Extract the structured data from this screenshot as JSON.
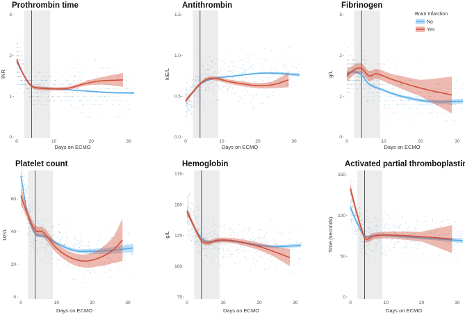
{
  "figure": {
    "legend_title": "Brain Infarction",
    "colors": {
      "No": "#5aaee8",
      "Yes": "#d2503a",
      "shade": "#ececec",
      "vline": "#555555"
    }
  },
  "chart_data": [
    {
      "type": "line",
      "title": "Prothrombin time",
      "xlabel": "Days on ECMO",
      "ylabel": "INR",
      "xlim": [
        0,
        32
      ],
      "ylim": [
        0,
        3.1
      ],
      "xticks": [
        "0",
        "10",
        "20",
        "30"
      ],
      "yticks": [
        "0",
        "1",
        "2",
        "3"
      ],
      "ytick_values": [
        0,
        1,
        2,
        3
      ],
      "shaded_x": [
        2,
        9
      ],
      "vline_x": 4,
      "legend": "none",
      "series": [
        {
          "name": "No",
          "x": [
            0,
            2,
            4,
            8,
            15,
            20,
            25,
            31.5
          ],
          "y": [
            1.85,
            1.5,
            1.25,
            1.2,
            1.15,
            1.12,
            1.09,
            1.08
          ],
          "ci": [
            0.04,
            0.02,
            0.015,
            0.015,
            0.015,
            0.015,
            0.02,
            0.025
          ]
        },
        {
          "name": "Yes",
          "x": [
            0,
            2,
            4,
            6,
            10,
            14,
            18,
            22,
            28.5
          ],
          "y": [
            1.9,
            1.5,
            1.25,
            1.2,
            1.18,
            1.2,
            1.3,
            1.37,
            1.4
          ],
          "ci": [
            0.05,
            0.04,
            0.04,
            0.05,
            0.04,
            0.04,
            0.05,
            0.08,
            0.17
          ]
        }
      ]
    },
    {
      "type": "line",
      "title": "Antithrombin",
      "xlabel": "Days on ECMO",
      "ylabel": "kIE/L",
      "xlim": [
        0,
        32
      ],
      "ylim": [
        0,
        1.55
      ],
      "xticks": [
        "0",
        "10",
        "20",
        "30"
      ],
      "yticks": [
        "0.0",
        "0.5",
        "1.0",
        "1.5"
      ],
      "ytick_values": [
        0,
        0.5,
        1,
        1.5
      ],
      "shaded_x": [
        2,
        9
      ],
      "vline_x": 4,
      "legend": "none",
      "series": [
        {
          "name": "No",
          "x": [
            0,
            2,
            4,
            8,
            12,
            20,
            26,
            31.5
          ],
          "y": [
            0.44,
            0.55,
            0.65,
            0.72,
            0.74,
            0.78,
            0.78,
            0.76
          ],
          "ci": [
            0.02,
            0.01,
            0.01,
            0.01,
            0.01,
            0.01,
            0.015,
            0.02
          ]
        },
        {
          "name": "Yes",
          "x": [
            0,
            2,
            4,
            6,
            8,
            12,
            16,
            20,
            24,
            28.5
          ],
          "y": [
            0.44,
            0.55,
            0.65,
            0.71,
            0.72,
            0.68,
            0.65,
            0.63,
            0.64,
            0.7
          ],
          "ci": [
            0.03,
            0.02,
            0.02,
            0.02,
            0.025,
            0.025,
            0.03,
            0.03,
            0.04,
            0.09
          ]
        }
      ]
    },
    {
      "type": "line",
      "title": "Fibrinogen",
      "xlabel": "Days on ECMO",
      "ylabel": "g/L",
      "xlim": [
        0,
        32
      ],
      "ylim": [
        0,
        3.1
      ],
      "xticks": [
        "0",
        "10",
        "20",
        "30"
      ],
      "yticks": [
        "0",
        "1",
        "2",
        "3"
      ],
      "ytick_values": [
        0,
        1,
        2,
        3
      ],
      "shaded_x": [
        2,
        9
      ],
      "vline_x": 4,
      "legend": "top-right",
      "series": [
        {
          "name": "No",
          "x": [
            0,
            2,
            4,
            6,
            9,
            14,
            20,
            25,
            31.5
          ],
          "y": [
            1.55,
            1.6,
            1.52,
            1.3,
            1.18,
            1.02,
            0.9,
            0.86,
            0.88
          ],
          "ci": [
            0.05,
            0.04,
            0.03,
            0.03,
            0.03,
            0.03,
            0.04,
            0.05,
            0.06
          ]
        },
        {
          "name": "Yes",
          "x": [
            0,
            2,
            4,
            6,
            8,
            12,
            20,
            28.5
          ],
          "y": [
            1.5,
            1.65,
            1.68,
            1.5,
            1.55,
            1.42,
            1.2,
            1.03
          ],
          "ci": [
            0.15,
            0.12,
            0.12,
            0.12,
            0.12,
            0.13,
            0.2,
            0.45
          ]
        }
      ]
    },
    {
      "type": "line",
      "title": "Platelet count",
      "xlabel": "Days on ECMO",
      "ylabel": "10⁹/L",
      "xlim": [
        0,
        32
      ],
      "ylim": [
        -3,
        80
      ],
      "xticks": [
        "0",
        "10",
        "20",
        "30"
      ],
      "yticks": [
        "0",
        "20",
        "40",
        "60"
      ],
      "ytick_values": [
        0,
        20,
        40,
        60
      ],
      "shaded_x": [
        2,
        9
      ],
      "vline_x": 4,
      "legend": "none",
      "series": [
        {
          "name": "No",
          "x": [
            0,
            2,
            4,
            7,
            10,
            15,
            20,
            25,
            31.5
          ],
          "y": [
            74,
            50,
            39,
            37,
            33,
            28.5,
            28,
            28.5,
            30
          ],
          "ci": [
            2,
            1,
            1,
            1,
            1,
            1,
            1.5,
            2,
            2.5
          ]
        },
        {
          "name": "Yes",
          "x": [
            0,
            2,
            4,
            6,
            7,
            10,
            14,
            18,
            22,
            26,
            28.5
          ],
          "y": [
            62,
            50,
            41,
            40,
            38,
            30,
            24,
            22,
            24,
            29,
            35
          ],
          "ci": [
            5,
            3,
            3,
            3,
            3,
            3,
            3.5,
            4,
            5,
            8,
            13
          ]
        }
      ]
    },
    {
      "type": "line",
      "title": "Hemoglobin",
      "xlabel": "Days on ECMO",
      "ylabel": "g/L",
      "xlim": [
        0,
        32
      ],
      "ylim": [
        70,
        180
      ],
      "xticks": [
        "0",
        "10",
        "20",
        "30"
      ],
      "yticks": [
        "75",
        "100",
        "125",
        "150",
        "175"
      ],
      "ytick_values": [
        75,
        100,
        125,
        150,
        175
      ],
      "shaded_x": [
        2,
        9
      ],
      "vline_x": 4,
      "legend": "none",
      "series": [
        {
          "name": "No",
          "x": [
            0,
            2,
            4,
            6,
            10,
            16,
            20,
            25,
            31.5
          ],
          "y": [
            144,
            132,
            123,
            120,
            121,
            119,
            117,
            116,
            117
          ],
          "ci": [
            1.5,
            1,
            1,
            1,
            1,
            1,
            1,
            1.2,
            1.5
          ]
        },
        {
          "name": "Yes",
          "x": [
            0,
            2,
            4,
            6,
            8,
            12,
            16,
            20,
            24,
            28.5
          ],
          "y": [
            145,
            132,
            121,
            119,
            121,
            121,
            119,
            116,
            112,
            107
          ],
          "ci": [
            3,
            2,
            2,
            2,
            2,
            2,
            2.5,
            3,
            4,
            7
          ]
        }
      ]
    },
    {
      "type": "line",
      "title": "Activated partial thromboplastin time",
      "xlabel": "Days on ECMO",
      "ylabel": "Time (seconds)",
      "xlim": [
        0,
        32
      ],
      "ylim": [
        -3,
        157
      ],
      "xticks": [
        "0",
        "10",
        "20",
        "30"
      ],
      "yticks": [
        "0",
        "50",
        "100",
        "150"
      ],
      "ytick_values": [
        0,
        50,
        100,
        150
      ],
      "shaded_x": [
        2,
        9
      ],
      "vline_x": 4,
      "legend": "none",
      "series": [
        {
          "name": "No",
          "x": [
            0,
            2,
            4,
            8,
            15,
            25,
            31.5
          ],
          "y": [
            110,
            90,
            75,
            76,
            74,
            71,
            69
          ],
          "ci": [
            3,
            2,
            1.5,
            1.5,
            1.5,
            2,
            3
          ]
        },
        {
          "name": "Yes",
          "x": [
            0,
            2,
            4,
            5,
            6,
            10,
            20,
            28.5
          ],
          "y": [
            133,
            100,
            73,
            71,
            74,
            76,
            74,
            71
          ],
          "ci": [
            6,
            4,
            4,
            4,
            4,
            4,
            6,
            17
          ]
        }
      ]
    }
  ]
}
